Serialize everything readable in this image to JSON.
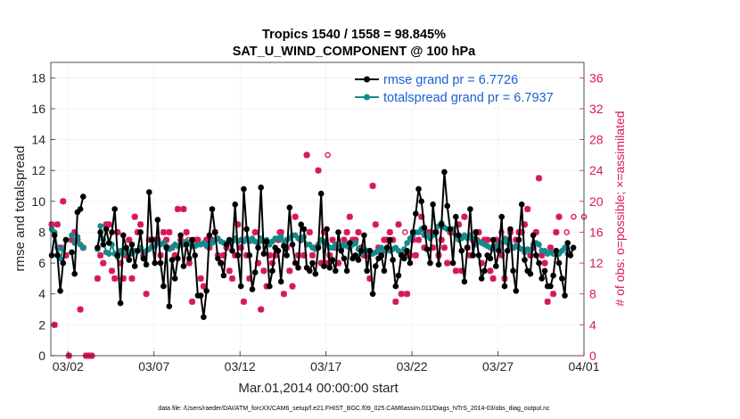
{
  "chart_data": {
    "type": "line",
    "title": "Tropics 1540 / 1558 = 98.845%",
    "subtitle": "SAT_U_WIND_COMPONENT @ 100 hPa",
    "xlabel": "Mar.01,2014 00:00:00 start",
    "ylabel": "rmse and totalspread",
    "y2label": "# of obs: o=possible; ×=assimilated",
    "footer": "data file: /Users/raeder/DAI/ATM_forcXX/CAM6_setup/f.e21.FHIST_BGC.f09_025.CAM6assim.011/Diags_NTrS_2014-03/obs_diag_output.nc",
    "xlim": [
      0,
      31
    ],
    "ylim": [
      0,
      19
    ],
    "y2lim": [
      0,
      38
    ],
    "xticks": [
      1,
      6,
      11,
      16,
      21,
      26,
      31
    ],
    "xtick_labels": [
      "03/02",
      "03/07",
      "03/12",
      "03/17",
      "03/22",
      "03/27",
      "04/01"
    ],
    "yticks": [
      0,
      2,
      4,
      6,
      8,
      10,
      12,
      14,
      16,
      18
    ],
    "ytick_labels": [
      "0",
      "2",
      "4",
      "6",
      "8",
      "10",
      "12",
      "14",
      "16",
      "18"
    ],
    "y2ticks": [
      0,
      4,
      8,
      12,
      16,
      20,
      24,
      28,
      32,
      36
    ],
    "y2tick_labels": [
      "0",
      "4",
      "8",
      "12",
      "16",
      "20",
      "24",
      "28",
      "32",
      "36"
    ],
    "colors": {
      "rmse": "#000000",
      "spread": "#168a8a",
      "obs": "#d6185c",
      "legend_text": "#1a5fd6"
    },
    "legend": [
      {
        "name": "rmse grand pr = 6.7726",
        "series": "rmse"
      },
      {
        "name": "totalspread grand pr = 6.7937",
        "series": "spread"
      }
    ],
    "legend_position": "top-right",
    "series": [
      {
        "name": "rmse",
        "values": [
          6.5,
          7.8,
          6.5,
          4.2,
          6.0,
          7.5,
          null,
          6.7,
          5.3,
          9.3,
          9.5,
          10.3,
          null,
          null,
          null,
          null,
          7.0,
          8.0,
          7.2,
          8.2,
          7.3,
          8.0,
          9.5,
          6.5,
          3.4,
          7.8,
          7.0,
          6.2,
          7.2,
          5.8,
          6.8,
          8.0,
          6.3,
          5.9,
          10.6,
          7.5,
          6.0,
          8.8,
          6.0,
          4.5,
          7.0,
          3.2,
          6.2,
          5.0,
          6.3,
          7.8,
          5.8,
          7.2,
          6.3,
          7.5,
          6.5,
          3.9,
          3.9,
          2.5,
          4.2,
          7.8,
          9.5,
          8.0,
          6.3,
          6.0,
          5.2,
          7.2,
          7.5,
          6.8,
          9.8,
          6.5,
          4.5,
          10.8,
          8.2,
          6.5,
          4.3,
          5.4,
          7.0,
          10.9,
          6.6,
          7.4,
          4.5,
          5.5,
          7.0,
          6.8,
          4.8,
          7.1,
          6.5,
          9.6,
          7.2,
          6.0,
          5.7,
          8.5,
          8.2,
          5.7,
          5.5,
          6.0,
          5.3,
          7.0,
          10.5,
          5.8,
          8.2,
          5.7,
          6.2,
          5.5,
          8.0,
          6.8,
          6.3,
          5.5,
          7.3,
          6.3,
          6.5,
          6.2,
          6.8,
          7.8,
          5.5,
          6.8,
          4.0,
          5.8,
          6.3,
          6.5,
          5.5,
          7.0,
          7.5,
          6.2,
          4.5,
          5.2,
          6.5,
          6.3,
          6.8,
          6.0,
          8.0,
          9.2,
          10.8,
          10.0,
          8.3,
          6.9,
          6.0,
          9.8,
          8.0,
          5.9,
          8.5,
          11.9,
          9.7,
          8.2,
          6.0,
          9.0,
          7.8,
          6.8,
          4.8,
          7.0,
          9.5,
          6.5,
          8.0,
          6.5,
          5.0,
          5.5,
          6.5,
          6.3,
          7.5,
          5.8,
          6.8,
          9.0,
          4.5,
          6.8,
          8.2,
          5.5,
          4.2,
          7.5,
          9.8,
          6.2,
          5.5,
          5.3,
          7.8,
          6.5,
          6.0,
          5.0,
          5.5,
          4.5,
          4.5,
          5.2,
          6.8,
          6.0,
          5.0,
          3.9,
          7.3,
          6.5,
          7.0
        ],
        "start_day": 0.05,
        "step_day": 0.16667
      },
      {
        "name": "totalspread",
        "values": [
          8.2,
          8.0,
          7.0,
          6.3,
          6.9,
          7.5,
          null,
          7.8,
          7.3,
          7.7,
          7.2,
          7.0,
          null,
          null,
          null,
          null,
          6.9,
          8.4,
          7.5,
          6.7,
          6.6,
          7.2,
          6.6,
          6.4,
          6.8,
          6.6,
          6.9,
          6.7,
          6.6,
          6.8,
          6.8,
          7.0,
          6.7,
          6.8,
          6.9,
          7.1,
          7.1,
          7.3,
          7.2,
          7.3,
          7.1,
          6.9,
          7.0,
          7.2,
          7.1,
          7.2,
          7.2,
          7.4,
          7.3,
          7.1,
          7.1,
          7.2,
          7.2,
          7.3,
          7.1,
          7.2,
          7.3,
          7.5,
          7.6,
          7.4,
          7.3,
          7.3,
          7.5,
          7.4,
          7.6,
          7.4,
          7.5,
          7.4,
          7.6,
          7.4,
          7.6,
          7.4,
          7.3,
          7.6,
          7.4,
          7.5,
          7.2,
          7.4,
          7.6,
          7.6,
          7.7,
          7.4,
          7.5,
          7.6,
          7.8,
          7.8,
          7.6,
          7.5,
          7.7,
          7.2,
          7.2,
          7.0,
          6.9,
          7.2,
          7.5,
          7.4,
          7.2,
          7.0,
          7.0,
          7.2,
          7.0,
          7.1,
          7.2,
          7.1,
          7.0,
          7.2,
          7.3,
          6.9,
          6.6,
          6.9,
          6.8,
          6.8,
          6.6,
          6.7,
          6.8,
          7.0,
          6.8,
          7.0,
          6.8,
          6.9,
          7.0,
          6.8,
          6.6,
          6.9,
          7.3,
          7.6,
          7.8,
          8.0,
          8.0,
          8.2,
          7.8,
          7.8,
          7.6,
          7.8,
          8.0,
          8.4,
          8.6,
          8.3,
          8.2,
          8.2,
          8.2,
          7.8,
          7.5,
          7.6,
          7.8,
          7.6,
          7.8,
          7.6,
          7.2,
          7.4,
          7.3,
          7.2,
          7.1,
          7.0,
          6.9,
          7.1,
          7.2,
          7.3,
          7.6,
          7.3,
          7.1,
          7.0,
          7.1,
          7.0,
          6.9,
          6.7,
          6.9,
          6.8,
          7.2,
          7.3,
          7.2,
          6.8,
          6.8,
          6.6,
          6.7,
          6.6,
          6.8,
          6.6,
          6.8,
          7.0,
          6.6
        ],
        "start_day": 0.05,
        "step_day": 0.16667
      },
      {
        "name": "obs_assimilated",
        "axis": "right",
        "values": [
          17,
          4,
          17,
          14,
          20,
          13,
          0,
          15,
          16,
          15,
          6,
          14,
          0,
          0,
          0,
          null,
          10,
          13,
          12,
          17,
          17,
          11,
          10,
          16,
          12,
          10,
          13,
          15,
          10,
          18,
          16,
          17,
          13,
          8,
          15,
          15,
          15,
          15,
          13,
          16,
          15,
          16,
          14,
          13,
          19,
          15,
          19,
          16,
          12,
          7,
          15,
          15,
          10,
          9,
          15,
          14,
          15,
          16,
          13,
          12,
          13,
          14,
          11,
          10,
          13,
          17,
          14,
          7,
          13,
          10,
          15,
          16,
          12,
          6,
          11,
          9,
          13,
          12,
          13,
          15,
          16,
          8,
          14,
          11,
          9,
          18,
          13,
          15,
          13,
          26,
          16,
          13,
          14,
          24,
          12,
          16,
          12,
          13,
          15,
          14,
          12,
          14,
          15,
          16,
          18,
          15,
          15,
          16,
          14,
          13,
          13,
          10,
          22,
          17,
          14,
          13,
          15,
          15,
          16,
          15,
          7,
          17,
          8,
          13,
          8,
          13,
          15,
          13,
          15,
          18,
          14,
          16,
          16,
          14,
          16,
          13,
          15,
          14,
          12,
          16,
          16,
          11,
          17,
          11,
          18,
          14,
          13,
          15,
          16,
          16,
          12,
          15,
          15,
          11,
          10,
          15,
          14,
          13,
          10,
          15,
          16,
          14,
          15,
          16,
          16,
          17,
          19,
          13,
          14,
          16,
          23,
          13,
          12,
          7,
          14,
          8,
          16,
          18
        ],
        "start_day": 0.05,
        "step_day": 0.16667
      },
      {
        "name": "obs_possible",
        "axis": "right",
        "points": [
          [
            16.1,
            26
          ],
          [
            20.6,
            16
          ],
          [
            21.6,
            16
          ],
          [
            24.8,
            15
          ],
          [
            26.2,
            16
          ],
          [
            30.0,
            16
          ],
          [
            30.4,
            18
          ],
          [
            31.0,
            18
          ],
          [
            5.2,
            16
          ],
          [
            8.0,
            15
          ],
          [
            12.3,
            15
          ],
          [
            13.3,
            16
          ]
        ]
      }
    ]
  }
}
